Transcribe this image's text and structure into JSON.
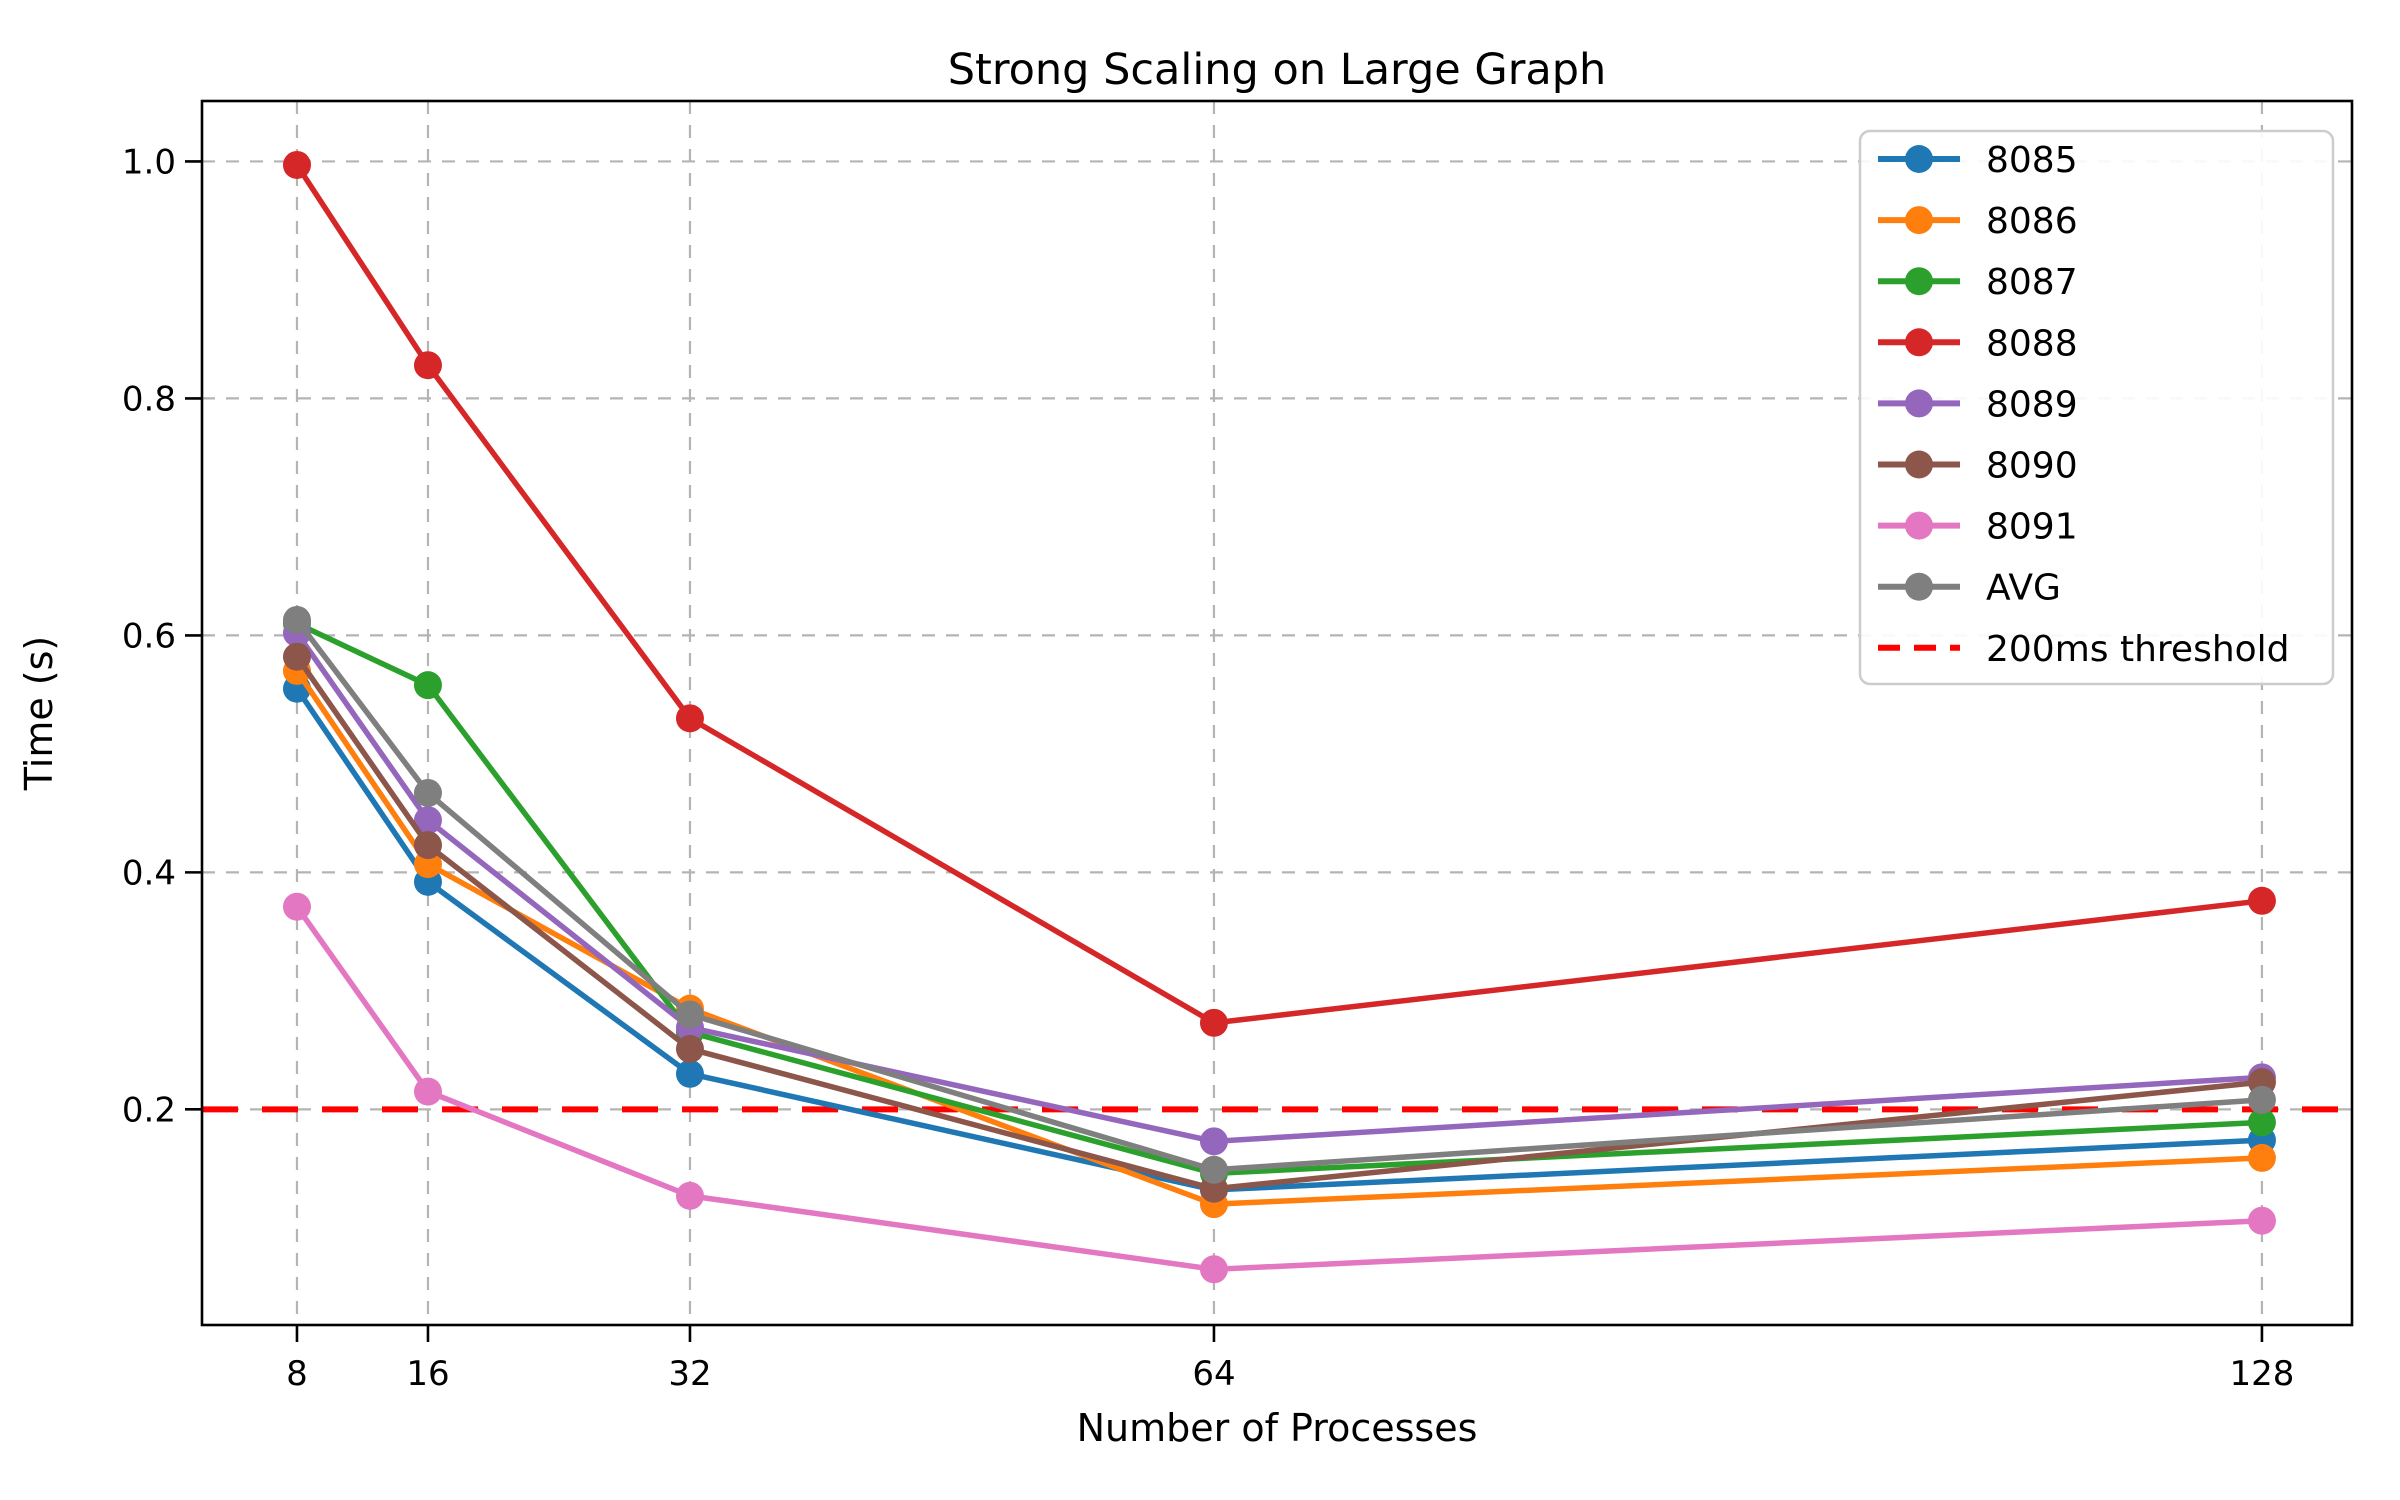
{
  "chart_data": {
    "type": "line",
    "title": "Strong Scaling on Large Graph",
    "xlabel": "Number of Processes",
    "ylabel": "Time (s)",
    "x": [
      8,
      16,
      32,
      64,
      128
    ],
    "xtick_labels": [
      "8",
      "16",
      "32",
      "64",
      "128"
    ],
    "yticks": [
      0.2,
      0.4,
      0.6,
      0.8,
      1.0
    ],
    "ytick_labels": [
      "0.2",
      "0.4",
      "0.6",
      "0.8",
      "1.0"
    ],
    "xlim": [
      2.2,
      133.5
    ],
    "ylim": [
      0.018,
      1.051
    ],
    "grid": true,
    "grid_style": "dashed",
    "grid_color": "#b4b4b4",
    "legend_position": "upper right",
    "series": [
      {
        "name": "8085",
        "color": "#1f77b4",
        "values": [
          0.555,
          0.392,
          0.23,
          0.132,
          0.174
        ]
      },
      {
        "name": "8086",
        "color": "#ff7f0e",
        "values": [
          0.57,
          0.407,
          0.285,
          0.12,
          0.159
        ]
      },
      {
        "name": "8087",
        "color": "#2ca02c",
        "values": [
          0.61,
          0.558,
          0.265,
          0.146,
          0.189
        ]
      },
      {
        "name": "8088",
        "color": "#d62728",
        "values": [
          0.997,
          0.828,
          0.53,
          0.273,
          0.376
        ]
      },
      {
        "name": "8089",
        "color": "#9467bd",
        "values": [
          0.602,
          0.444,
          0.269,
          0.173,
          0.227
        ]
      },
      {
        "name": "8090",
        "color": "#8c564b",
        "values": [
          0.582,
          0.423,
          0.251,
          0.133,
          0.223
        ]
      },
      {
        "name": "8091",
        "color": "#e377c2",
        "values": [
          0.371,
          0.215,
          0.127,
          0.065,
          0.106
        ]
      },
      {
        "name": "AVG",
        "color": "#7f7f7f",
        "values": [
          0.613,
          0.467,
          0.28,
          0.149,
          0.208
        ]
      }
    ],
    "threshold": {
      "label": "200ms threshold",
      "value": 0.2,
      "color": "#ff0000",
      "style": "dashed"
    }
  }
}
